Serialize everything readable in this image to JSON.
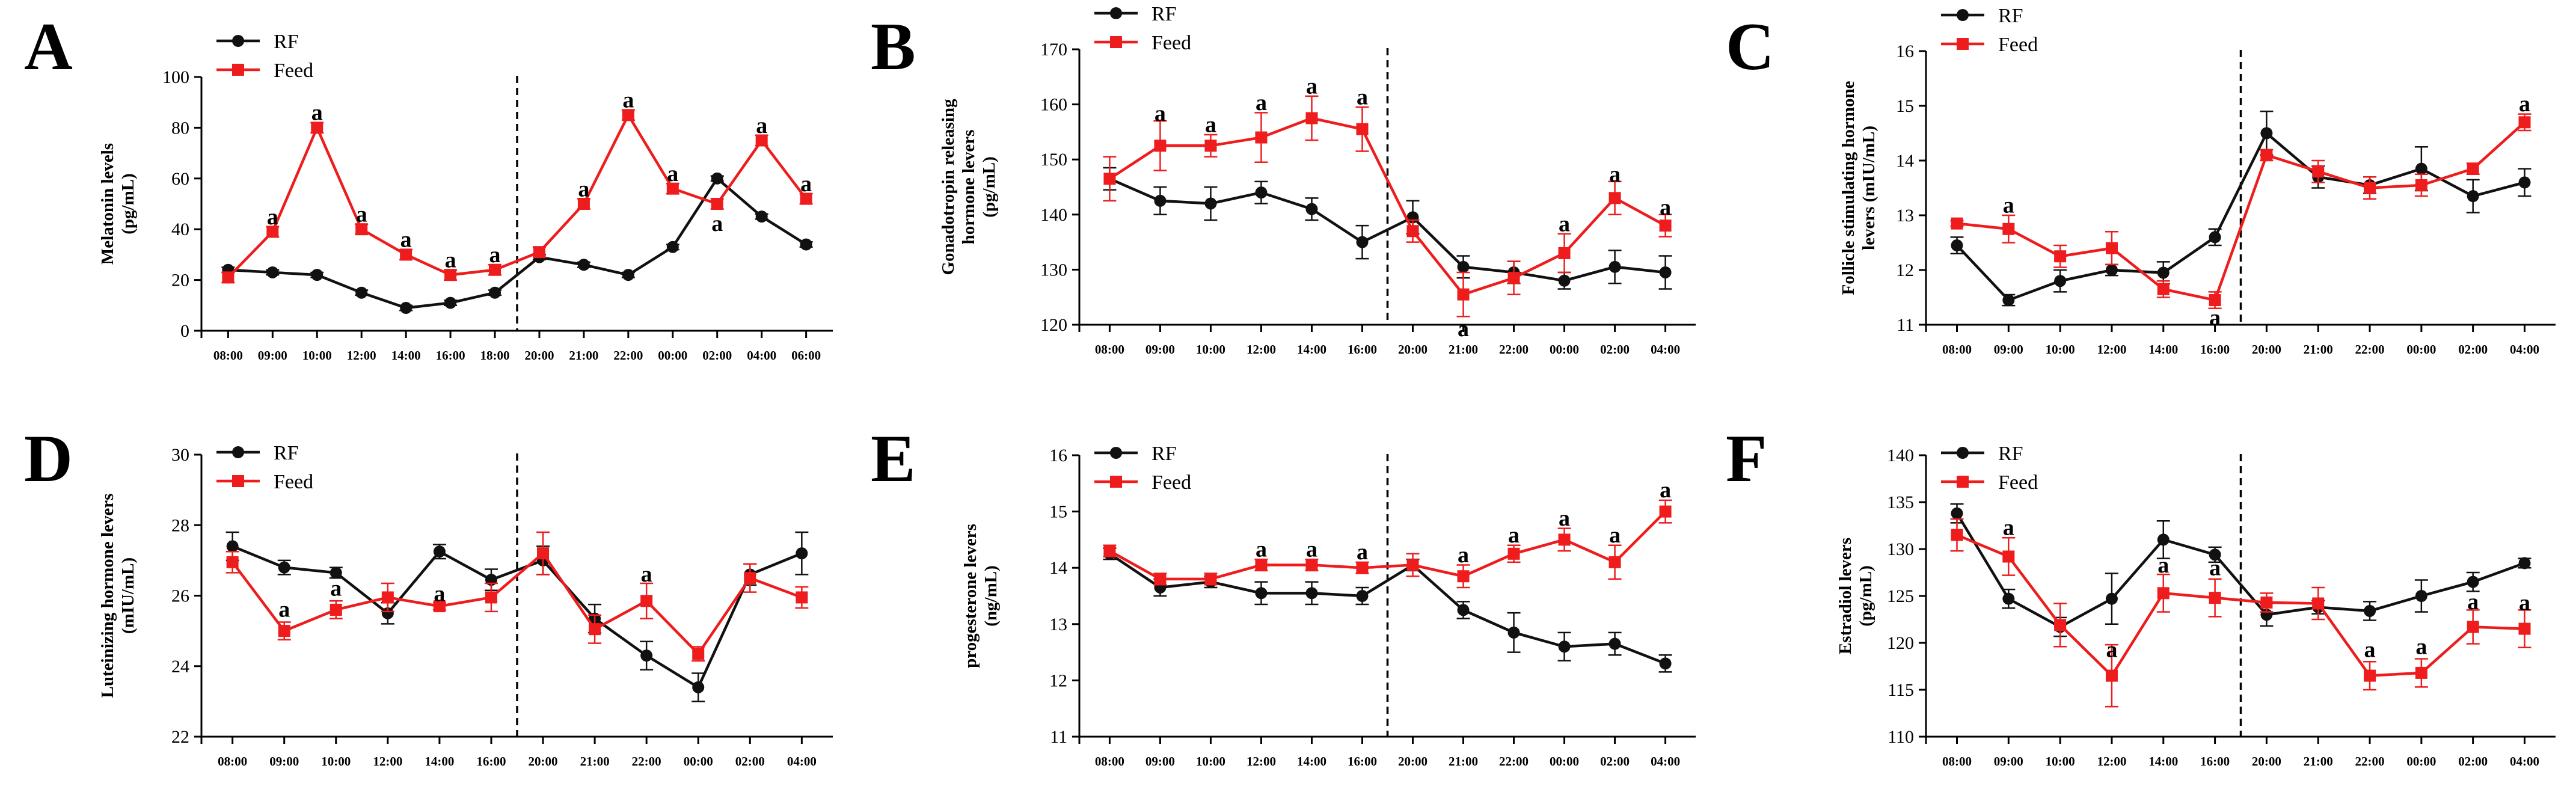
{
  "colors": {
    "RF": "#111111",
    "Feed": "#ee1c1c"
  },
  "legend": [
    "RF",
    "Feed"
  ],
  "chart_data": [
    {
      "panel": "A",
      "type": "line",
      "ylabel": [
        "Melatonin levels",
        "(pg/mL)"
      ],
      "ylim": [
        0,
        100
      ],
      "yticks": [
        0,
        20,
        40,
        60,
        80,
        100
      ],
      "categories": [
        "08:00",
        "09:00",
        "10:00",
        "12:00",
        "14:00",
        "16:00",
        "18:00",
        "20:00",
        "21:00",
        "22:00",
        "00:00",
        "02:00",
        "04:00",
        "06:00"
      ],
      "divider_after": 6,
      "series": [
        {
          "name": "RF",
          "values": [
            24,
            23,
            22,
            15,
            9,
            11,
            15,
            29,
            26,
            22,
            33,
            60,
            45,
            34
          ],
          "err": [
            1,
            1,
            1,
            1,
            1,
            1,
            1,
            1,
            1,
            1,
            1,
            1,
            1,
            1
          ]
        },
        {
          "name": "Feed",
          "values": [
            21,
            39,
            80,
            40,
            30,
            22,
            24,
            31,
            50,
            85,
            56,
            50,
            75,
            52
          ],
          "err": [
            2,
            2,
            2,
            2,
            2,
            2,
            2,
            2,
            2,
            2,
            2,
            2,
            2,
            2
          ]
        }
      ],
      "annotations": [
        {
          "text": "a",
          "cat": 1,
          "y": 42,
          "side": "above"
        },
        {
          "text": "a",
          "cat": 2,
          "y": 83,
          "side": "above"
        },
        {
          "text": "a",
          "cat": 3,
          "y": 43,
          "side": "above"
        },
        {
          "text": "a",
          "cat": 4,
          "y": 33,
          "side": "above"
        },
        {
          "text": "a",
          "cat": 5,
          "y": 25,
          "side": "above"
        },
        {
          "text": "a",
          "cat": 6,
          "y": 27,
          "side": "above"
        },
        {
          "text": "a",
          "cat": 8,
          "y": 53,
          "side": "above"
        },
        {
          "text": "a",
          "cat": 9,
          "y": 88,
          "side": "above"
        },
        {
          "text": "a",
          "cat": 10,
          "y": 59,
          "side": "above"
        },
        {
          "text": "a",
          "cat": 11,
          "y": 46,
          "side": "below"
        },
        {
          "text": "a",
          "cat": 12,
          "y": 78,
          "side": "above"
        },
        {
          "text": "a",
          "cat": 13,
          "y": 55,
          "side": "above"
        }
      ]
    },
    {
      "panel": "B",
      "type": "line",
      "ylabel": [
        "Gonadotropin releasing",
        "hormone levers",
        "(pg/mL)"
      ],
      "ylim": [
        120,
        170
      ],
      "yticks": [
        120,
        130,
        140,
        150,
        160,
        170
      ],
      "categories": [
        "08:00",
        "09:00",
        "10:00",
        "12:00",
        "14:00",
        "16:00",
        "20:00",
        "21:00",
        "22:00",
        "00:00",
        "02:00",
        "04:00"
      ],
      "divider_after": 5,
      "series": [
        {
          "name": "RF",
          "values": [
            146.5,
            142.5,
            142,
            144,
            141,
            135,
            139.5,
            130.5,
            129.5,
            128,
            130.5,
            129.5
          ],
          "err": [
            2,
            2.5,
            3,
            2,
            2,
            3,
            3,
            2,
            2,
            1.5,
            3,
            3
          ]
        },
        {
          "name": "Feed",
          "values": [
            146.5,
            152.5,
            152.5,
            154,
            157.5,
            155.5,
            137,
            125.5,
            128.5,
            133,
            143,
            138
          ],
          "err": [
            4,
            4.5,
            2,
            4.5,
            4,
            4,
            2,
            4,
            3,
            3.5,
            3,
            2
          ]
        }
      ],
      "annotations": [
        {
          "text": "a",
          "cat": 1,
          "y": 157,
          "side": "above"
        },
        {
          "text": "a",
          "cat": 2,
          "y": 155,
          "side": "above"
        },
        {
          "text": "a",
          "cat": 3,
          "y": 159,
          "side": "above"
        },
        {
          "text": "a",
          "cat": 4,
          "y": 162,
          "side": "above"
        },
        {
          "text": "a",
          "cat": 5,
          "y": 160,
          "side": "above"
        },
        {
          "text": "a",
          "cat": 7,
          "y": 121,
          "side": "below"
        },
        {
          "text": "a",
          "cat": 9,
          "y": 137,
          "side": "above"
        },
        {
          "text": "a",
          "cat": 10,
          "y": 146,
          "side": "above"
        },
        {
          "text": "a",
          "cat": 11,
          "y": 140,
          "side": "above"
        }
      ]
    },
    {
      "panel": "C",
      "type": "line",
      "ylabel": [
        "Follicle stimulating hormone",
        "levers (mIU/mL)"
      ],
      "ylim": [
        11,
        16
      ],
      "yticks": [
        11,
        12,
        13,
        14,
        15,
        16
      ],
      "categories": [
        "08:00",
        "09:00",
        "10:00",
        "12:00",
        "14:00",
        "16:00",
        "20:00",
        "21:00",
        "22:00",
        "00:00",
        "02:00",
        "04:00"
      ],
      "divider_after": 5,
      "series": [
        {
          "name": "RF",
          "values": [
            12.45,
            11.45,
            11.8,
            12.0,
            11.95,
            12.6,
            14.5,
            13.7,
            13.55,
            13.85,
            13.35,
            13.6
          ],
          "err": [
            0.15,
            0.1,
            0.2,
            0.1,
            0.2,
            0.15,
            0.4,
            0.2,
            0.15,
            0.4,
            0.3,
            0.25
          ]
        },
        {
          "name": "Feed",
          "values": [
            12.85,
            12.75,
            12.25,
            12.4,
            11.65,
            11.45,
            14.1,
            13.8,
            13.5,
            13.55,
            13.85,
            14.7
          ],
          "err": [
            0.05,
            0.25,
            0.2,
            0.3,
            0.15,
            0.15,
            0.1,
            0.2,
            0.2,
            0.2,
            0.1,
            0.15
          ]
        }
      ],
      "annotations": [
        {
          "text": "a",
          "cat": 1,
          "y": 13.05,
          "side": "above"
        },
        {
          "text": "a",
          "cat": 5,
          "y": 11.3,
          "side": "below"
        },
        {
          "text": "a",
          "cat": 11,
          "y": 14.9,
          "side": "above"
        }
      ]
    },
    {
      "panel": "D",
      "type": "line",
      "ylabel": [
        "Luteinizing hormone levers",
        "(mIU/mL)"
      ],
      "ylim": [
        22,
        30
      ],
      "yticks": [
        22,
        24,
        26,
        28,
        30
      ],
      "categories": [
        "08:00",
        "09:00",
        "10:00",
        "12:00",
        "14:00",
        "16:00",
        "20:00",
        "21:00",
        "22:00",
        "00:00",
        "02:00",
        "04:00"
      ],
      "divider_after": 5,
      "series": [
        {
          "name": "RF",
          "values": [
            27.4,
            26.8,
            26.65,
            25.5,
            27.25,
            26.45,
            27.0,
            25.35,
            24.3,
            23.4,
            26.6,
            27.2
          ],
          "err": [
            0.4,
            0.2,
            0.15,
            0.3,
            0.2,
            0.3,
            0.4,
            0.4,
            0.4,
            0.4,
            0.3,
            0.6
          ]
        },
        {
          "name": "Feed",
          "values": [
            26.95,
            25.0,
            25.6,
            25.95,
            25.7,
            25.95,
            27.2,
            25.05,
            25.85,
            24.35,
            26.5,
            25.95
          ],
          "err": [
            0.3,
            0.25,
            0.25,
            0.4,
            0.1,
            0.4,
            0.6,
            0.4,
            0.5,
            0.2,
            0.4,
            0.3
          ]
        }
      ],
      "annotations": [
        {
          "text": "a",
          "cat": 1,
          "y": 25.4,
          "side": "above"
        },
        {
          "text": "a",
          "cat": 2,
          "y": 26.0,
          "side": "above"
        },
        {
          "text": "a",
          "cat": 4,
          "y": 25.85,
          "side": "above"
        },
        {
          "text": "a",
          "cat": 8,
          "y": 26.4,
          "side": "above"
        }
      ]
    },
    {
      "panel": "E",
      "type": "line",
      "ylabel": [
        "progesterone levers",
        "(ng/mL)"
      ],
      "ylim": [
        11,
        16
      ],
      "yticks": [
        11,
        12,
        13,
        14,
        15,
        16
      ],
      "categories": [
        "08:00",
        "09:00",
        "10:00",
        "12:00",
        "14:00",
        "16:00",
        "20:00",
        "21:00",
        "22:00",
        "00:00",
        "02:00",
        "04:00"
      ],
      "divider_after": 5,
      "series": [
        {
          "name": "RF",
          "values": [
            14.25,
            13.65,
            13.75,
            13.55,
            13.55,
            13.5,
            14.05,
            13.25,
            12.85,
            12.6,
            12.65,
            12.3
          ],
          "err": [
            0.1,
            0.15,
            0.1,
            0.2,
            0.2,
            0.15,
            0.1,
            0.15,
            0.35,
            0.25,
            0.2,
            0.15
          ]
        },
        {
          "name": "Feed",
          "values": [
            14.3,
            13.8,
            13.8,
            14.05,
            14.05,
            14.0,
            14.05,
            13.85,
            14.25,
            14.5,
            14.1,
            15.0
          ],
          "err": [
            0.1,
            0.1,
            0.1,
            0.1,
            0.1,
            0.1,
            0.2,
            0.2,
            0.15,
            0.2,
            0.3,
            0.2
          ]
        }
      ],
      "annotations": [
        {
          "text": "a",
          "cat": 3,
          "y": 14.2,
          "side": "above"
        },
        {
          "text": "a",
          "cat": 4,
          "y": 14.2,
          "side": "above"
        },
        {
          "text": "a",
          "cat": 5,
          "y": 14.15,
          "side": "above"
        },
        {
          "text": "a",
          "cat": 7,
          "y": 14.1,
          "side": "above"
        },
        {
          "text": "a",
          "cat": 8,
          "y": 14.45,
          "side": "above"
        },
        {
          "text": "a",
          "cat": 9,
          "y": 14.75,
          "side": "above"
        },
        {
          "text": "a",
          "cat": 10,
          "y": 14.45,
          "side": "above"
        },
        {
          "text": "a",
          "cat": 11,
          "y": 15.25,
          "side": "above"
        }
      ]
    },
    {
      "panel": "F",
      "type": "line",
      "ylabel": [
        "Estradiol levers",
        "(pg/mL)"
      ],
      "ylim": [
        110,
        140
      ],
      "yticks": [
        110,
        115,
        120,
        125,
        130,
        135,
        140
      ],
      "categories": [
        "08:00",
        "09:00",
        "10:00",
        "12:00",
        "14:00",
        "16:00",
        "20:00",
        "21:00",
        "22:00",
        "00:00",
        "02:00",
        "04:00"
      ],
      "divider_after": 5,
      "series": [
        {
          "name": "RF",
          "values": [
            133.8,
            124.7,
            121.7,
            124.7,
            131.0,
            129.4,
            123.0,
            123.8,
            123.4,
            125.0,
            126.5,
            128.5
          ],
          "err": [
            1.0,
            1.0,
            1.0,
            2.7,
            2.0,
            0.8,
            1.2,
            0.7,
            1.0,
            1.7,
            1.0,
            0.5
          ]
        },
        {
          "name": "Feed",
          "values": [
            131.5,
            129.2,
            121.9,
            116.5,
            125.3,
            124.8,
            124.3,
            124.2,
            116.5,
            116.8,
            121.7,
            121.5
          ],
          "err": [
            1.7,
            2.0,
            2.3,
            3.3,
            2.0,
            2.0,
            1.0,
            1.7,
            1.5,
            1.5,
            1.8,
            2.0
          ]
        }
      ],
      "annotations": [
        {
          "text": "a",
          "cat": 1,
          "y": 131.5,
          "side": "above"
        },
        {
          "text": "a",
          "cat": 3,
          "y": 118.5,
          "side": "above"
        },
        {
          "text": "a",
          "cat": 4,
          "y": 127.5,
          "side": "above"
        },
        {
          "text": "a",
          "cat": 5,
          "y": 127.2,
          "side": "above"
        },
        {
          "text": "a",
          "cat": 8,
          "y": 118.5,
          "side": "above"
        },
        {
          "text": "a",
          "cat": 9,
          "y": 118.8,
          "side": "above"
        },
        {
          "text": "a",
          "cat": 10,
          "y": 123.6,
          "side": "above"
        },
        {
          "text": "a",
          "cat": 11,
          "y": 123.5,
          "side": "above"
        }
      ]
    }
  ]
}
